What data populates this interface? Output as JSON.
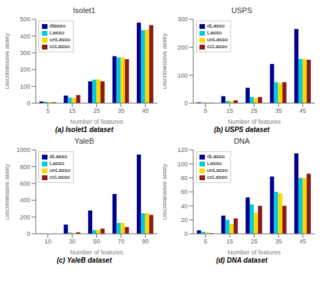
{
  "chart_data": [
    {
      "type": "bar",
      "title": "Isolet1",
      "xlabel": "Number of features",
      "ylabel": "Discriminative ability",
      "caption": "(a)  Isolet1 dataset",
      "categories": [
        "5",
        "15",
        "25",
        "35",
        "45"
      ],
      "series": [
        {
          "name": "dlasso",
          "color": "#00008B",
          "values": [
            10,
            45,
            130,
            280,
            480
          ]
        },
        {
          "name": "Lasso",
          "color": "#00CCDD",
          "values": [
            8,
            33,
            140,
            272,
            435
          ]
        },
        {
          "name": "unLasso",
          "color": "#FFD700",
          "values": [
            7,
            32,
            142,
            272,
            437
          ]
        },
        {
          "name": "ccLasso",
          "color": "#8B1A1A",
          "values": [
            5,
            48,
            130,
            262,
            465
          ]
        }
      ],
      "ylim": [
        0,
        500
      ],
      "yticks": [
        0,
        100,
        200,
        300,
        400,
        500
      ],
      "grid": false,
      "legend": "upper left"
    },
    {
      "type": "bar",
      "title": "USPS",
      "xlabel": "Number of features",
      "ylabel": "Discriminative ability",
      "caption": "(b)  USPS dataset",
      "categories": [
        "5",
        "15",
        "25",
        "35",
        "45"
      ],
      "series": [
        {
          "name": "dLasso",
          "color": "#00008B",
          "values": [
            3,
            25,
            55,
            140,
            265
          ]
        },
        {
          "name": "Lasso",
          "color": "#00CCDD",
          "values": [
            2,
            8,
            22,
            75,
            158
          ]
        },
        {
          "name": "unLasso",
          "color": "#FFD700",
          "values": [
            2,
            7,
            18,
            72,
            158
          ]
        },
        {
          "name": "ccLasso",
          "color": "#8B1A1A",
          "values": [
            1,
            10,
            22,
            75,
            155
          ]
        }
      ],
      "ylim": [
        0,
        300
      ],
      "yticks": [
        0,
        100,
        200,
        300
      ],
      "grid": false,
      "legend": "upper left"
    },
    {
      "type": "bar",
      "title": "YaleB",
      "xlabel": "Number of features",
      "ylabel": "Discriminative ability",
      "caption": "(c)  YaleB dataset",
      "categories": [
        "10",
        "30",
        "50",
        "70",
        "90"
      ],
      "series": [
        {
          "name": "dLasso",
          "color": "#00008B",
          "values": [
            2,
            110,
            278,
            475,
            945
          ]
        },
        {
          "name": "Lasso",
          "color": "#00CCDD",
          "values": [
            1,
            15,
            45,
            130,
            245
          ]
        },
        {
          "name": "unLasso",
          "color": "#FFD700",
          "values": [
            1,
            12,
            48,
            130,
            245
          ]
        },
        {
          "name": "ccLasso",
          "color": "#8B1A1A",
          "values": [
            1,
            18,
            62,
            80,
            225
          ]
        }
      ],
      "ylim": [
        0,
        1000
      ],
      "yticks": [
        0,
        200,
        400,
        600,
        800,
        1000
      ],
      "grid": false,
      "legend": "upper left"
    },
    {
      "type": "bar",
      "title": "DNA",
      "xlabel": "Number of features",
      "ylabel": "Discriminative ability",
      "caption": "(d)  DNA dataset",
      "categories": [
        "5",
        "15",
        "25",
        "35",
        "45"
      ],
      "series": [
        {
          "name": "dLasso",
          "color": "#00008B",
          "values": [
            5,
            26,
            52,
            82,
            115
          ]
        },
        {
          "name": "Lasso",
          "color": "#00CCDD",
          "values": [
            3,
            20,
            42,
            60,
            80
          ]
        },
        {
          "name": "unLasso",
          "color": "#FFD700",
          "values": [
            2,
            14,
            30,
            58,
            80
          ]
        },
        {
          "name": "ccLasso",
          "color": "#8B1A1A",
          "values": [
            1,
            22,
            40,
            40,
            86
          ]
        }
      ],
      "ylim": [
        0,
        120
      ],
      "yticks": [
        0,
        20,
        40,
        60,
        80,
        100,
        120
      ],
      "grid": false,
      "legend": "upper left"
    }
  ]
}
